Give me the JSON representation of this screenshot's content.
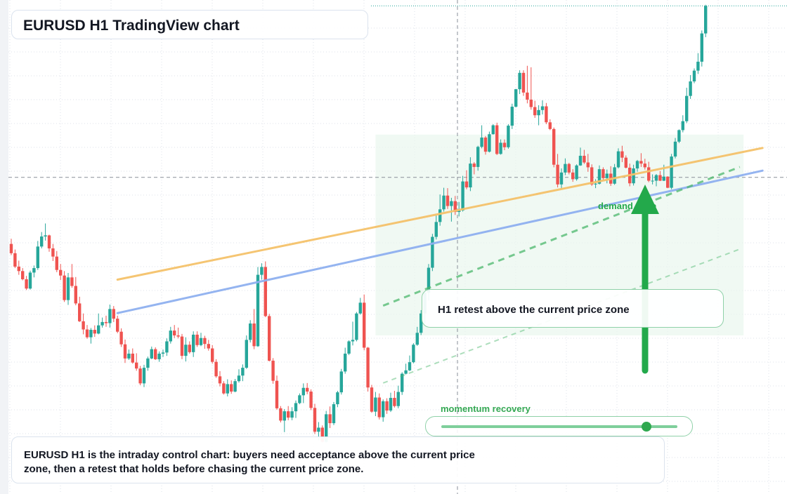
{
  "title": "EURUSD H1 TradingView chart",
  "callout": {
    "text": "H1 retest above the current price zone"
  },
  "zone_label": "demand zone",
  "momentum": {
    "label": "momentum recovery",
    "level": 0.87
  },
  "note": {
    "text": "EURUSD H1 is the intraday control chart: buyers need acceptance above the current price zone, then a retest that holds before chasing the current price zone."
  },
  "colors": {
    "up": "#26a69a",
    "down": "#ef5350",
    "orange_trend": "#f5c26b",
    "blue_trend": "#8fb0f0",
    "green_accent": "#23a94b",
    "zone_fill": "#eaf7ee"
  },
  "chart_data": {
    "type": "candlestick",
    "interval": "H1",
    "symbol": "EURUSD",
    "ylim": [
      0,
      100
    ],
    "grid": true,
    "candles_ohlc": [
      [
        64.6,
        66.0,
        61.6,
        62.1
      ],
      [
        62.1,
        63.1,
        58.1,
        58.5
      ],
      [
        58.5,
        60.1,
        56.3,
        57.3
      ],
      [
        57.3,
        58.1,
        54.8,
        55.1
      ],
      [
        55.1,
        56.0,
        52.2,
        52.6
      ],
      [
        52.6,
        57.4,
        52.3,
        56.9
      ],
      [
        56.9,
        58.8,
        55.6,
        58.1
      ],
      [
        58.1,
        65.4,
        57.6,
        63.9
      ],
      [
        63.9,
        67.8,
        63.4,
        66.6
      ],
      [
        66.6,
        70.1,
        65.5,
        66.9
      ],
      [
        66.9,
        67.1,
        62.5,
        63.4
      ],
      [
        63.4,
        64.6,
        60.0,
        61.2
      ],
      [
        61.2,
        62.7,
        57.0,
        57.6
      ],
      [
        57.6,
        59.2,
        54.9,
        56.1
      ],
      [
        56.1,
        57.3,
        49.0,
        49.5
      ],
      [
        49.5,
        56.8,
        48.2,
        55.6
      ],
      [
        55.6,
        59.2,
        52.8,
        53.3
      ],
      [
        53.3,
        55.7,
        48.1,
        48.6
      ],
      [
        48.6,
        50.4,
        43.6,
        43.8
      ],
      [
        43.8,
        45.9,
        40.3,
        41.6
      ],
      [
        41.6,
        42.8,
        39.1,
        39.5
      ],
      [
        39.5,
        42.0,
        37.8,
        41.5
      ],
      [
        41.5,
        42.7,
        39.6,
        40.5
      ],
      [
        40.5,
        45.9,
        40.3,
        42.7
      ],
      [
        42.7,
        44.8,
        42.1,
        43.6
      ],
      [
        43.6,
        45.3,
        42.3,
        43.3
      ],
      [
        43.3,
        48.3,
        42.1,
        47.1
      ],
      [
        47.1,
        47.9,
        43.6,
        44.5
      ],
      [
        44.5,
        45.3,
        40.6,
        41.0
      ],
      [
        41.0,
        41.9,
        36.9,
        37.6
      ],
      [
        37.6,
        38.9,
        32.6,
        33.8
      ],
      [
        33.8,
        36.2,
        33.4,
        35.1
      ],
      [
        35.1,
        36.5,
        32.4,
        32.7
      ],
      [
        32.7,
        35.2,
        30.5,
        31.1
      ],
      [
        31.1,
        31.8,
        26.6,
        27.1
      ],
      [
        27.1,
        32.1,
        26.1,
        31.3
      ],
      [
        31.3,
        34.3,
        30.5,
        33.8
      ],
      [
        33.8,
        37.0,
        33.6,
        36.3
      ],
      [
        36.3,
        36.8,
        33.4,
        33.6
      ],
      [
        33.6,
        35.7,
        32.9,
        35.1
      ],
      [
        35.1,
        36.2,
        34.2,
        35.4
      ],
      [
        35.4,
        39.2,
        34.5,
        38.4
      ],
      [
        38.4,
        42.3,
        37.8,
        41.3
      ],
      [
        41.3,
        42.8,
        39.3,
        40.0
      ],
      [
        40.0,
        42.1,
        39.2,
        39.7
      ],
      [
        39.7,
        40.4,
        33.6,
        34.5
      ],
      [
        34.5,
        39.5,
        33.0,
        37.5
      ],
      [
        37.5,
        38.4,
        35.1,
        35.5
      ],
      [
        35.5,
        41.1,
        34.2,
        40.2
      ],
      [
        40.2,
        41.1,
        36.9,
        37.4
      ],
      [
        37.4,
        40.7,
        37.1,
        39.3
      ],
      [
        39.3,
        39.9,
        36.4,
        37.7
      ],
      [
        37.7,
        38.8,
        35.9,
        36.5
      ],
      [
        36.5,
        37.4,
        32.4,
        32.9
      ],
      [
        32.9,
        33.6,
        28.6,
        29.0
      ],
      [
        29.0,
        30.4,
        26.3,
        27.1
      ],
      [
        27.1,
        27.7,
        24.1,
        24.4
      ],
      [
        24.4,
        28.2,
        23.6,
        26.9
      ],
      [
        26.9,
        27.9,
        24.3,
        24.9
      ],
      [
        24.9,
        28.3,
        24.7,
        27.7
      ],
      [
        27.7,
        30.9,
        27.3,
        29.2
      ],
      [
        29.2,
        32.2,
        27.7,
        31.3
      ],
      [
        31.3,
        40.0,
        31.0,
        38.8
      ],
      [
        38.8,
        44.1,
        38.1,
        43.2
      ],
      [
        43.2,
        47.1,
        36.3,
        37.1
      ],
      [
        37.1,
        58.4,
        36.9,
        56.3
      ],
      [
        56.3,
        59.4,
        55.0,
        58.4
      ],
      [
        58.4,
        59.9,
        44.9,
        45.2
      ],
      [
        45.2,
        45.8,
        33.0,
        33.2
      ],
      [
        33.2,
        33.9,
        27.0,
        27.8
      ],
      [
        27.8,
        29.2,
        20.0,
        20.4
      ],
      [
        20.4,
        21.0,
        16.6,
        17.1
      ],
      [
        17.1,
        20.2,
        14.0,
        19.6
      ],
      [
        19.6,
        21.0,
        17.2,
        17.9
      ],
      [
        17.9,
        20.7,
        17.2,
        19.6
      ],
      [
        19.6,
        22.5,
        17.8,
        21.8
      ],
      [
        21.8,
        24.4,
        21.5,
        23.9
      ],
      [
        23.9,
        27.1,
        21.8,
        25.9
      ],
      [
        25.9,
        27.2,
        24.2,
        24.9
      ],
      [
        24.9,
        25.5,
        19.9,
        20.5
      ],
      [
        20.5,
        21.6,
        13.5,
        14.1
      ],
      [
        14.1,
        16.7,
        11.8,
        15.2
      ],
      [
        15.2,
        15.8,
        11.2,
        11.4
      ],
      [
        11.4,
        19.7,
        11.2,
        18.8
      ],
      [
        18.8,
        20.9,
        15.1,
        16.4
      ],
      [
        16.4,
        22.1,
        15.9,
        21.5
      ],
      [
        21.5,
        25.1,
        20.7,
        24.7
      ],
      [
        24.7,
        31.0,
        24.1,
        30.3
      ],
      [
        30.3,
        36.7,
        29.7,
        35.1
      ],
      [
        35.1,
        38.7,
        34.7,
        38.4
      ],
      [
        38.4,
        43.7,
        37.3,
        38.8
      ],
      [
        38.8,
        46.3,
        38.4,
        45.9
      ],
      [
        45.9,
        50.1,
        45.6,
        48.8
      ],
      [
        48.8,
        51.0,
        36.0,
        36.7
      ],
      [
        36.7,
        36.9,
        24.9,
        26.0
      ],
      [
        26.0,
        26.7,
        19.2,
        19.5
      ],
      [
        19.5,
        24.8,
        18.3,
        23.3
      ],
      [
        23.3,
        24.4,
        17.4,
        18.0
      ],
      [
        18.0,
        22.8,
        16.8,
        22.3
      ],
      [
        22.3,
        23.1,
        18.9,
        19.8
      ],
      [
        19.8,
        24.6,
        19.4,
        23.2
      ],
      [
        23.2,
        25.1,
        20.6,
        21.0
      ],
      [
        21.0,
        26.5,
        20.4,
        24.8
      ],
      [
        24.8,
        30.1,
        24.0,
        29.7
      ],
      [
        29.7,
        32.4,
        29.5,
        30.6
      ],
      [
        30.6,
        34.6,
        30.4,
        32.8
      ],
      [
        32.8,
        37.9,
        32.5,
        37.5
      ],
      [
        37.5,
        42.3,
        37.2,
        40.7
      ],
      [
        40.7,
        46.8,
        40.1,
        45.9
      ],
      [
        45.9,
        51.7,
        43.1,
        51.5
      ],
      [
        51.5,
        59.2,
        49.4,
        58.2
      ],
      [
        58.2,
        67.3,
        57.3,
        66.5
      ],
      [
        66.5,
        72.3,
        65.8,
        70.5
      ],
      [
        70.5,
        77.9,
        69.5,
        73.9
      ],
      [
        73.9,
        79.7,
        73.3,
        77.6
      ],
      [
        77.6,
        79.6,
        74.0,
        74.8
      ],
      [
        74.8,
        77.0,
        70.6,
        76.1
      ],
      [
        76.1,
        77.5,
        72.4,
        73.2
      ],
      [
        73.2,
        75.9,
        72.0,
        73.6
      ],
      [
        73.6,
        82.9,
        73.3,
        81.4
      ],
      [
        81.4,
        84.4,
        79.3,
        79.8
      ],
      [
        79.8,
        87.9,
        78.8,
        86.2
      ],
      [
        86.2,
        86.6,
        83.3,
        85.3
      ],
      [
        85.3,
        91.0,
        84.3,
        90.7
      ],
      [
        90.7,
        96.5,
        90.3,
        93.2
      ],
      [
        93.2,
        93.6,
        88.6,
        89.4
      ],
      [
        89.4,
        94.8,
        89.2,
        94.1
      ],
      [
        94.1,
        96.8,
        94.0,
        96.5
      ],
      [
        96.5,
        97.2,
        88.5,
        88.8
      ],
      [
        88.8,
        92.7,
        88.6,
        91.8
      ],
      [
        91.8,
        92.7,
        89.8,
        90.6
      ],
      [
        90.6,
        96.8,
        90.2,
        96.4
      ],
      [
        96.4,
        102.3,
        95.5,
        101.5
      ],
      [
        101.5,
        106.3,
        101.3,
        106.2
      ],
      [
        106.2,
        111.3,
        104.9,
        110.6
      ],
      [
        110.6,
        111.3,
        104.4,
        105.3
      ],
      [
        105.3,
        112.5,
        102.4,
        103.4
      ],
      [
        103.4,
        112.1,
        100.7,
        101.4
      ],
      [
        101.4,
        103.1,
        98.5,
        99.2
      ],
      [
        99.2,
        101.9,
        96.5,
        100.6
      ],
      [
        100.6,
        103.2,
        99.4,
        101.6
      ],
      [
        101.6,
        102.5,
        96.8,
        97.3
      ],
      [
        97.3,
        98.1,
        95.2,
        95.5
      ],
      [
        95.5,
        95.9,
        85.2,
        85.9
      ],
      [
        85.9,
        88.8,
        79.8,
        80.6
      ],
      [
        80.6,
        84.9,
        79.4,
        83.8
      ],
      [
        83.8,
        87.6,
        83.1,
        86.1
      ],
      [
        86.1,
        86.4,
        83.3,
        83.8
      ],
      [
        83.8,
        84.7,
        81.3,
        82.0
      ],
      [
        82.0,
        86.0,
        81.6,
        85.7
      ],
      [
        85.7,
        90.5,
        85.6,
        88.3
      ],
      [
        88.3,
        89.9,
        86.1,
        86.5
      ],
      [
        86.5,
        88.8,
        84.0,
        85.2
      ],
      [
        85.2,
        86.0,
        80.2,
        80.6
      ],
      [
        80.6,
        82.0,
        79.6,
        80.8
      ],
      [
        80.8,
        85.7,
        80.6,
        84.7
      ],
      [
        84.7,
        85.2,
        81.8,
        82.3
      ],
      [
        82.3,
        84.6,
        80.9,
        83.5
      ],
      [
        83.5,
        85.5,
        80.2,
        80.8
      ],
      [
        80.8,
        86.1,
        80.5,
        85.2
      ],
      [
        85.2,
        90.3,
        84.9,
        89.5
      ],
      [
        89.5,
        91.0,
        86.6,
        87.8
      ],
      [
        87.8,
        88.4,
        84.9,
        85.1
      ],
      [
        85.1,
        86.2,
        80.1,
        80.9
      ],
      [
        80.9,
        85.9,
        80.3,
        84.9
      ],
      [
        84.9,
        87.2,
        84.0,
        86.9
      ],
      [
        86.9,
        89.0,
        85.3,
        86.2
      ],
      [
        86.2,
        87.5,
        84.6,
        85.2
      ],
      [
        85.2,
        86.7,
        81.2,
        81.6
      ],
      [
        81.6,
        83.3,
        80.6,
        81.6
      ],
      [
        81.6,
        83.4,
        80.1,
        83.1
      ],
      [
        83.1,
        84.2,
        81.5,
        81.6
      ],
      [
        81.6,
        85.9,
        81.5,
        82.7
      ],
      [
        82.7,
        82.8,
        79.6,
        79.7
      ],
      [
        79.7,
        88.8,
        79.3,
        88.1
      ],
      [
        88.1,
        93.1,
        87.6,
        92.1
      ],
      [
        92.1,
        95.4,
        91.7,
        95.2
      ],
      [
        95.2,
        99.2,
        94.6,
        97.6
      ],
      [
        97.6,
        106.6,
        97.1,
        104.4
      ],
      [
        104.4,
        110.0,
        103.6,
        108.3
      ],
      [
        108.3,
        111.8,
        107.8,
        111.2
      ],
      [
        111.2,
        115.9,
        110.3,
        113.6
      ],
      [
        113.6,
        122.0,
        112.3,
        121.2
      ],
      [
        121.2,
        128.9,
        120.2,
        128.6
      ]
    ],
    "trendlines": [
      {
        "from_candle": 28,
        "from_value": 55.0,
        "to_candle": 198,
        "to_value": 90.4
      },
      {
        "from_candle": 28,
        "from_value": 46.0,
        "to_candle": 198,
        "to_value": 84.3
      }
    ],
    "projections": [
      {
        "from_candle": 98,
        "from_value": 48.0,
        "to_candle": 192,
        "to_value": 85.3
      },
      {
        "from_candle": 98,
        "from_value": 27.2,
        "to_candle": 192,
        "to_value": 63.2
      }
    ],
    "zone": {
      "from_candle": 96,
      "to_candle": 193,
      "low": 40.0,
      "high": 94.0
    },
    "reference_level": 82.5
  }
}
